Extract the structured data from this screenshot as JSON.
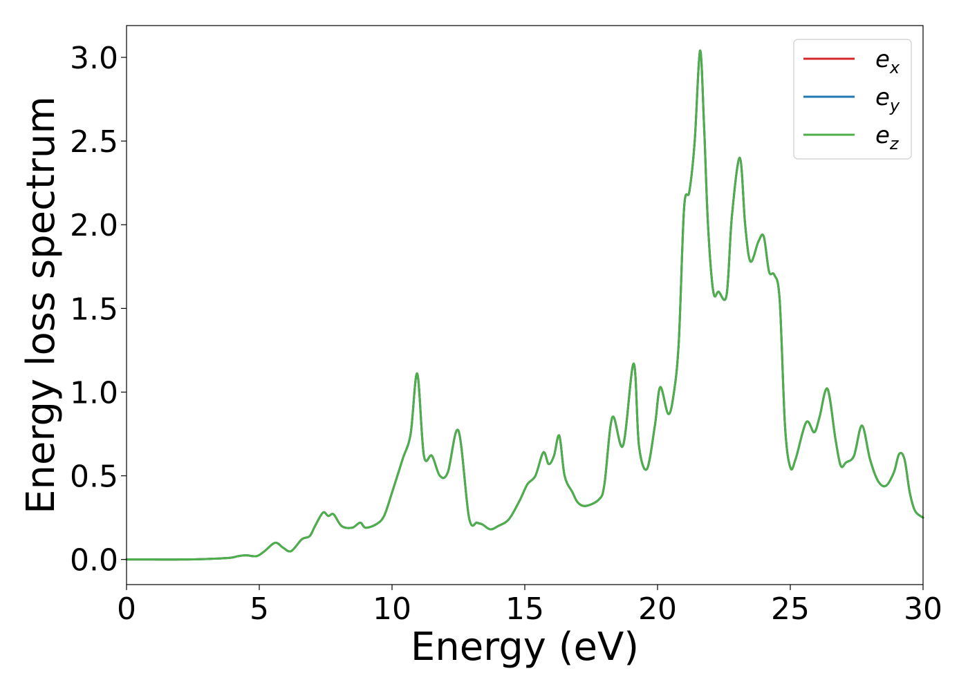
{
  "chart_data": {
    "type": "line",
    "xlabel": "Energy (eV)",
    "ylabel": "Energy loss spectrum",
    "xlim": [
      0,
      30
    ],
    "ylim": [
      -0.15,
      3.19
    ],
    "xticks": [
      0,
      5,
      10,
      15,
      20,
      25,
      30
    ],
    "xtick_labels": [
      "0",
      "5",
      "10",
      "15",
      "20",
      "25",
      "30"
    ],
    "yticks": [
      0.0,
      0.5,
      1.0,
      1.5,
      2.0,
      2.5,
      3.0
    ],
    "ytick_labels": [
      "0.0",
      "0.5",
      "1.0",
      "1.5",
      "2.0",
      "2.5",
      "3.0"
    ],
    "grid": false,
    "legend": "top-right",
    "series": [
      {
        "name": "e_x",
        "symbol": "e",
        "subscript": "x",
        "color": "#d62728",
        "x": [
          0,
          1,
          2,
          3,
          3.9,
          4.2,
          4.5,
          4.9,
          5.2,
          5.6,
          5.9,
          6.2,
          6.6,
          6.9,
          7.1,
          7.4,
          7.6,
          7.8,
          8.1,
          8.5,
          8.8,
          9.0,
          9.4,
          9.7,
          10.0,
          10.4,
          10.7,
          10.95,
          11.2,
          11.5,
          11.8,
          12.1,
          12.5,
          12.9,
          13.2,
          13.4,
          13.7,
          14.0,
          14.4,
          14.8,
          15.1,
          15.4,
          15.7,
          15.9,
          16.1,
          16.3,
          16.5,
          16.8,
          17.0,
          17.3,
          17.8,
          18.0,
          18.3,
          18.7,
          19.1,
          19.3,
          19.6,
          19.9,
          20.1,
          20.4,
          20.6,
          20.8,
          21.0,
          21.2,
          21.4,
          21.6,
          21.75,
          21.9,
          22.1,
          22.3,
          22.6,
          22.8,
          23.1,
          23.3,
          23.5,
          23.8,
          24.0,
          24.2,
          24.4,
          24.6,
          24.8,
          25.0,
          25.2,
          25.6,
          25.9,
          26.1,
          26.4,
          26.7,
          26.9,
          27.1,
          27.4,
          27.7,
          28.0,
          28.3,
          28.6,
          28.9,
          29.1,
          29.3,
          29.5,
          29.7,
          30.0
        ],
        "values": [
          0,
          0,
          0,
          0.003,
          0.01,
          0.02,
          0.025,
          0.02,
          0.05,
          0.1,
          0.07,
          0.05,
          0.12,
          0.14,
          0.2,
          0.28,
          0.26,
          0.27,
          0.2,
          0.19,
          0.22,
          0.19,
          0.21,
          0.26,
          0.4,
          0.6,
          0.75,
          1.11,
          0.62,
          0.62,
          0.5,
          0.52,
          0.77,
          0.25,
          0.22,
          0.21,
          0.18,
          0.2,
          0.24,
          0.35,
          0.45,
          0.5,
          0.64,
          0.57,
          0.62,
          0.74,
          0.5,
          0.4,
          0.34,
          0.32,
          0.36,
          0.45,
          0.85,
          0.68,
          1.17,
          0.68,
          0.54,
          0.8,
          1.03,
          0.87,
          0.98,
          1.3,
          2.1,
          2.2,
          2.5,
          3.04,
          2.6,
          2.0,
          1.6,
          1.6,
          1.58,
          2.05,
          2.4,
          2.0,
          1.78,
          1.9,
          1.93,
          1.72,
          1.7,
          1.55,
          0.8,
          0.55,
          0.6,
          0.82,
          0.76,
          0.85,
          1.02,
          0.72,
          0.56,
          0.58,
          0.62,
          0.8,
          0.6,
          0.47,
          0.44,
          0.52,
          0.63,
          0.6,
          0.4,
          0.29,
          0.25
        ]
      },
      {
        "name": "e_y",
        "symbol": "e",
        "subscript": "y",
        "color": "#1f77b4",
        "x": [
          0,
          1,
          2,
          3,
          3.9,
          4.2,
          4.5,
          4.9,
          5.2,
          5.6,
          5.9,
          6.2,
          6.6,
          6.9,
          7.1,
          7.4,
          7.6,
          7.8,
          8.1,
          8.5,
          8.8,
          9.0,
          9.4,
          9.7,
          10.0,
          10.4,
          10.7,
          10.95,
          11.2,
          11.5,
          11.8,
          12.1,
          12.5,
          12.9,
          13.2,
          13.4,
          13.7,
          14.0,
          14.4,
          14.8,
          15.1,
          15.4,
          15.7,
          15.9,
          16.1,
          16.3,
          16.5,
          16.8,
          17.0,
          17.3,
          17.8,
          18.0,
          18.3,
          18.7,
          19.1,
          19.3,
          19.6,
          19.9,
          20.1,
          20.4,
          20.6,
          20.8,
          21.0,
          21.2,
          21.4,
          21.6,
          21.75,
          21.9,
          22.1,
          22.3,
          22.6,
          22.8,
          23.1,
          23.3,
          23.5,
          23.8,
          24.0,
          24.2,
          24.4,
          24.6,
          24.8,
          25.0,
          25.2,
          25.6,
          25.9,
          26.1,
          26.4,
          26.7,
          26.9,
          27.1,
          27.4,
          27.7,
          28.0,
          28.3,
          28.6,
          28.9,
          29.1,
          29.3,
          29.5,
          29.7,
          30.0
        ],
        "values": [
          0,
          0,
          0,
          0.003,
          0.01,
          0.02,
          0.025,
          0.02,
          0.05,
          0.1,
          0.07,
          0.05,
          0.12,
          0.14,
          0.2,
          0.28,
          0.26,
          0.27,
          0.2,
          0.19,
          0.22,
          0.19,
          0.21,
          0.26,
          0.4,
          0.6,
          0.75,
          1.11,
          0.62,
          0.62,
          0.5,
          0.52,
          0.77,
          0.25,
          0.22,
          0.21,
          0.18,
          0.2,
          0.24,
          0.35,
          0.45,
          0.5,
          0.64,
          0.57,
          0.62,
          0.74,
          0.5,
          0.4,
          0.34,
          0.32,
          0.36,
          0.45,
          0.85,
          0.68,
          1.17,
          0.68,
          0.54,
          0.8,
          1.03,
          0.87,
          0.98,
          1.3,
          2.1,
          2.2,
          2.5,
          3.04,
          2.6,
          2.0,
          1.6,
          1.6,
          1.58,
          2.05,
          2.4,
          2.0,
          1.78,
          1.9,
          1.93,
          1.72,
          1.7,
          1.55,
          0.8,
          0.55,
          0.6,
          0.82,
          0.76,
          0.85,
          1.02,
          0.72,
          0.56,
          0.58,
          0.62,
          0.8,
          0.6,
          0.47,
          0.44,
          0.52,
          0.63,
          0.6,
          0.4,
          0.29,
          0.25
        ]
      },
      {
        "name": "e_z",
        "symbol": "e",
        "subscript": "z",
        "color": "#4daf4a",
        "x": [
          0,
          1,
          2,
          3,
          3.9,
          4.2,
          4.5,
          4.9,
          5.2,
          5.6,
          5.9,
          6.2,
          6.6,
          6.9,
          7.1,
          7.4,
          7.6,
          7.8,
          8.1,
          8.5,
          8.8,
          9.0,
          9.4,
          9.7,
          10.0,
          10.4,
          10.7,
          10.95,
          11.2,
          11.5,
          11.8,
          12.1,
          12.5,
          12.9,
          13.2,
          13.4,
          13.7,
          14.0,
          14.4,
          14.8,
          15.1,
          15.4,
          15.7,
          15.9,
          16.1,
          16.3,
          16.5,
          16.8,
          17.0,
          17.3,
          17.8,
          18.0,
          18.3,
          18.7,
          19.1,
          19.3,
          19.6,
          19.9,
          20.1,
          20.4,
          20.6,
          20.8,
          21.0,
          21.2,
          21.4,
          21.6,
          21.75,
          21.9,
          22.1,
          22.3,
          22.6,
          22.8,
          23.1,
          23.3,
          23.5,
          23.8,
          24.0,
          24.2,
          24.4,
          24.6,
          24.8,
          25.0,
          25.2,
          25.6,
          25.9,
          26.1,
          26.4,
          26.7,
          26.9,
          27.1,
          27.4,
          27.7,
          28.0,
          28.3,
          28.6,
          28.9,
          29.1,
          29.3,
          29.5,
          29.7,
          30.0
        ],
        "values": [
          0,
          0,
          0,
          0.003,
          0.01,
          0.02,
          0.025,
          0.02,
          0.05,
          0.1,
          0.07,
          0.05,
          0.12,
          0.14,
          0.2,
          0.28,
          0.26,
          0.27,
          0.2,
          0.19,
          0.22,
          0.19,
          0.21,
          0.26,
          0.4,
          0.6,
          0.75,
          1.11,
          0.62,
          0.62,
          0.5,
          0.52,
          0.77,
          0.25,
          0.22,
          0.21,
          0.18,
          0.2,
          0.24,
          0.35,
          0.45,
          0.5,
          0.64,
          0.57,
          0.62,
          0.74,
          0.5,
          0.4,
          0.34,
          0.32,
          0.36,
          0.45,
          0.85,
          0.68,
          1.17,
          0.68,
          0.54,
          0.8,
          1.03,
          0.87,
          0.98,
          1.3,
          2.1,
          2.2,
          2.5,
          3.04,
          2.6,
          2.0,
          1.6,
          1.6,
          1.58,
          2.05,
          2.4,
          2.0,
          1.78,
          1.9,
          1.93,
          1.72,
          1.7,
          1.55,
          0.8,
          0.55,
          0.6,
          0.82,
          0.76,
          0.85,
          1.02,
          0.72,
          0.56,
          0.58,
          0.62,
          0.8,
          0.6,
          0.47,
          0.44,
          0.52,
          0.63,
          0.6,
          0.4,
          0.29,
          0.25
        ]
      }
    ]
  }
}
